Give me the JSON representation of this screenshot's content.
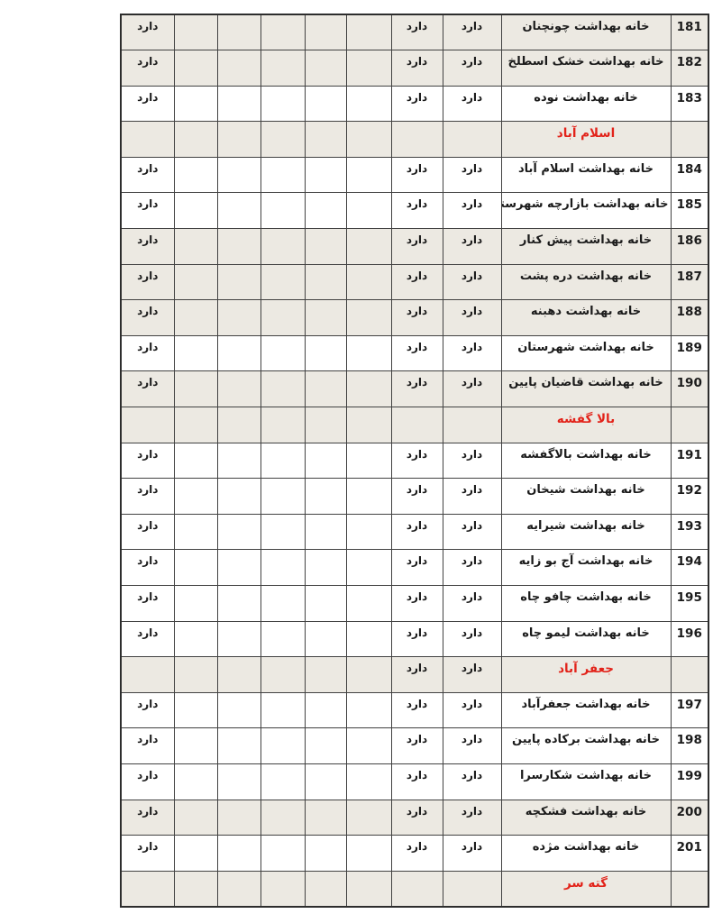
{
  "document": {
    "language": "fa",
    "direction": "rtl",
    "dard_label": "دارد",
    "colors": {
      "page_bg": "#ffffff",
      "row_shaded": "#ece9e2",
      "row_plain": "#ffffff",
      "section_red": "#e2231a",
      "text": "#1b1b1b",
      "border": "#424242",
      "outer_border": "#2d2d2d"
    },
    "rows": [
      {
        "no": "181",
        "name": "خانه بهداشت چونچنان",
        "kind": "data",
        "shaded": true,
        "col_a_dard": true,
        "col_gh_dard": true
      },
      {
        "no": "182",
        "name": "خانه بهداشت خشک اسطلخ",
        "kind": "data",
        "shaded": true,
        "col_a_dard": true,
        "col_gh_dard": true
      },
      {
        "no": "183",
        "name": "خانه بهداشت نوده",
        "kind": "data",
        "shaded": false,
        "col_a_dard": true,
        "col_gh_dard": true
      },
      {
        "no": "",
        "name": "اسلام آباد",
        "kind": "section",
        "shaded": true,
        "col_a_dard": false,
        "col_gh_dard": false
      },
      {
        "no": "184",
        "name": "خانه بهداشت اسلام آباد",
        "kind": "data",
        "shaded": false,
        "col_a_dard": true,
        "col_gh_dard": true
      },
      {
        "no": "185",
        "name": "خانه بهداشت بازارچه شهرستان",
        "kind": "data",
        "shaded": false,
        "col_a_dard": true,
        "col_gh_dard": true
      },
      {
        "no": "186",
        "name": "خانه بهداشت پیش کنار",
        "kind": "data",
        "shaded": true,
        "col_a_dard": true,
        "col_gh_dard": true
      },
      {
        "no": "187",
        "name": "خانه بهداشت دره پشت",
        "kind": "data",
        "shaded": true,
        "col_a_dard": true,
        "col_gh_dard": true
      },
      {
        "no": "188",
        "name": "خانه بهداشت دهبنه",
        "kind": "data",
        "shaded": true,
        "col_a_dard": true,
        "col_gh_dard": true
      },
      {
        "no": "189",
        "name": "خانه بهداشت شهرستان",
        "kind": "data",
        "shaded": false,
        "col_a_dard": true,
        "col_gh_dard": true
      },
      {
        "no": "190",
        "name": "خانه بهداشت قاضیان پایین",
        "kind": "data",
        "shaded": true,
        "col_a_dard": true,
        "col_gh_dard": true
      },
      {
        "no": "",
        "name": "بالا گفشه",
        "kind": "section",
        "shaded": true,
        "col_a_dard": false,
        "col_gh_dard": false
      },
      {
        "no": "191",
        "name": "خانه بهداشت بالاگفشه",
        "kind": "data",
        "shaded": false,
        "col_a_dard": true,
        "col_gh_dard": true
      },
      {
        "no": "192",
        "name": "خانه بهداشت شیخان",
        "kind": "data",
        "shaded": false,
        "col_a_dard": true,
        "col_gh_dard": true
      },
      {
        "no": "193",
        "name": "خانه بهداشت شیرایه",
        "kind": "data",
        "shaded": false,
        "col_a_dard": true,
        "col_gh_dard": true
      },
      {
        "no": "194",
        "name": "خانه بهداشت آج بو زایه",
        "kind": "data",
        "shaded": false,
        "col_a_dard": true,
        "col_gh_dard": true
      },
      {
        "no": "195",
        "name": "خانه بهداشت  چافو چاه",
        "kind": "data",
        "shaded": false,
        "col_a_dard": true,
        "col_gh_dard": true
      },
      {
        "no": "196",
        "name": "خانه بهداشت لیمو چاه",
        "kind": "data",
        "shaded": false,
        "col_a_dard": true,
        "col_gh_dard": true
      },
      {
        "no": "",
        "name": "جعفر آباد",
        "kind": "section",
        "shaded": true,
        "col_a_dard": false,
        "col_gh_dard": true
      },
      {
        "no": "197",
        "name": "خانه بهداشت جعفرآباد",
        "kind": "data",
        "shaded": false,
        "col_a_dard": true,
        "col_gh_dard": true
      },
      {
        "no": "198",
        "name": "خانه بهداشت برکاده پایین",
        "kind": "data",
        "shaded": false,
        "col_a_dard": true,
        "col_gh_dard": true
      },
      {
        "no": "199",
        "name": "خانه بهداشت شکارسرا",
        "kind": "data",
        "shaded": false,
        "col_a_dard": true,
        "col_gh_dard": true
      },
      {
        "no": "200",
        "name": "خانه بهداشت فشکچه",
        "kind": "data",
        "shaded": true,
        "col_a_dard": true,
        "col_gh_dard": true
      },
      {
        "no": "201",
        "name": "خانه بهداشت مژده",
        "kind": "data",
        "shaded": false,
        "col_a_dard": true,
        "col_gh_dard": true
      },
      {
        "no": "",
        "name": "گته سر",
        "kind": "section",
        "shaded": true,
        "col_a_dard": false,
        "col_gh_dard": false
      }
    ]
  }
}
